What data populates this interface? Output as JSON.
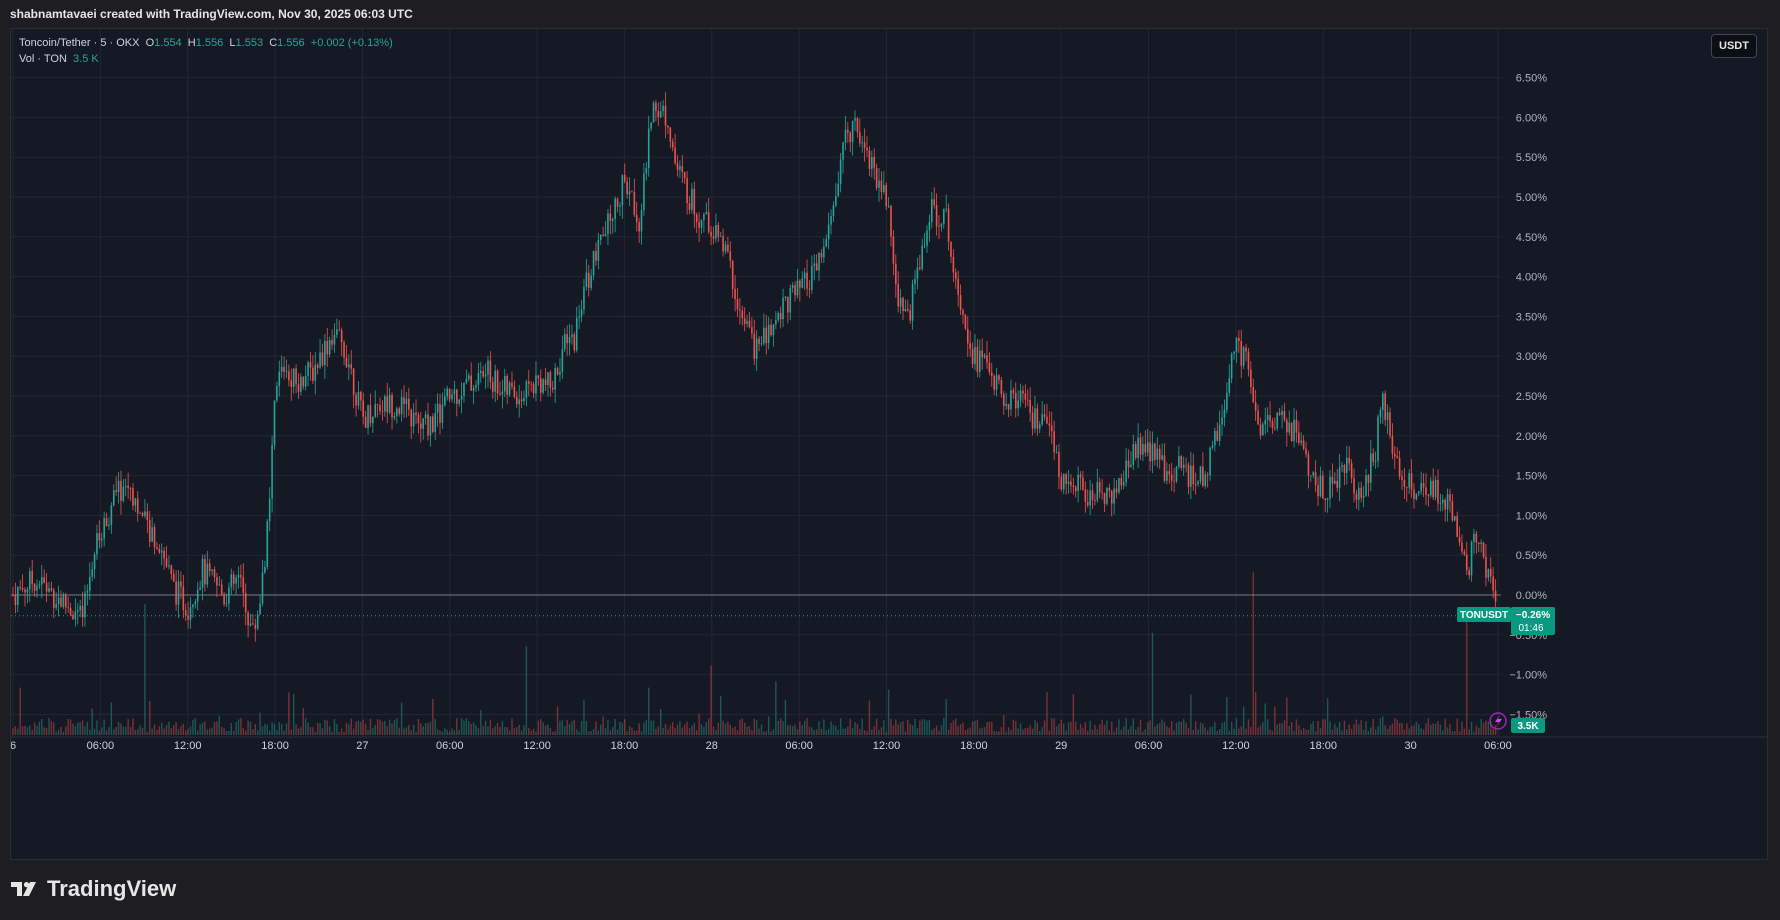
{
  "header": {
    "title": "shabnamtavaei created with TradingView.com, Nov 30, 2025 06:03 UTC"
  },
  "legend": {
    "symbol": "Toncoin/Tether · 5 · OKX",
    "open_label": "O",
    "open": "1.554",
    "high_label": "H",
    "high": "1.556",
    "low_label": "L",
    "low": "1.553",
    "close_label": "C",
    "close": "1.556",
    "change": "+0.002 (+0.13%)",
    "vol_label": "Vol · TON",
    "vol_value": "3.5 K"
  },
  "toolbar": {
    "currency_label": "USDT"
  },
  "badges": {
    "symbol_tag": "TONUSDT",
    "price_change": "−0.26%",
    "countdown": "01:46",
    "volume": "3.5K"
  },
  "footer": {
    "brand": "TradingView"
  },
  "colors": {
    "up": "#26a69a",
    "down": "#ef5350",
    "background": "#151924",
    "grid": "#232733",
    "text": "#b2b5be"
  },
  "chart_data": {
    "type": "candlestick",
    "title": "Toncoin/Tether · 5 · OKX",
    "xlabel": "",
    "ylabel": "",
    "y_unit": "%",
    "ylim": [
      -1.7,
      6.9
    ],
    "y_ticks": [
      "6.50%",
      "6.00%",
      "5.50%",
      "5.00%",
      "4.50%",
      "4.00%",
      "3.50%",
      "3.00%",
      "2.50%",
      "2.00%",
      "1.50%",
      "1.00%",
      "0.50%",
      "0.00%",
      "−0.50%",
      "−1.00%",
      "−1.50%"
    ],
    "x_ticks": [
      "6",
      "06:00",
      "12:00",
      "18:00",
      "27",
      "06:00",
      "12:00",
      "18:00",
      "28",
      "06:00",
      "12:00",
      "18:00",
      "29",
      "06:00",
      "12:00",
      "18:00",
      "30",
      "06:00"
    ],
    "last_value": -0.26,
    "price_path": [
      [
        0,
        0.0
      ],
      [
        1.5,
        0.2
      ],
      [
        3.5,
        -0.1
      ],
      [
        4.8,
        -0.3
      ],
      [
        5.5,
        0.5
      ],
      [
        7,
        1.25
      ],
      [
        8,
        1.4
      ],
      [
        9,
        0.9
      ],
      [
        10,
        0.7
      ],
      [
        11,
        0.1
      ],
      [
        12,
        -0.15
      ],
      [
        13,
        0.3
      ],
      [
        14.5,
        0.0
      ],
      [
        15.5,
        0.2
      ],
      [
        16.5,
        -0.5
      ],
      [
        17,
        0.0
      ],
      [
        17.6,
        1.0
      ],
      [
        18,
        2.5
      ],
      [
        18.5,
        2.9
      ],
      [
        19.5,
        2.7
      ],
      [
        20.5,
        2.8
      ],
      [
        22,
        3.3
      ],
      [
        23,
        3.0
      ],
      [
        24,
        2.2
      ],
      [
        25,
        2.4
      ],
      [
        26.5,
        2.4
      ],
      [
        28,
        2.1
      ],
      [
        29,
        2.2
      ],
      [
        30,
        2.5
      ],
      [
        31,
        2.6
      ],
      [
        32.5,
        2.8
      ],
      [
        33.5,
        2.6
      ],
      [
        35,
        2.5
      ],
      [
        36,
        2.7
      ],
      [
        37,
        2.6
      ],
      [
        37.8,
        3.1
      ],
      [
        38.5,
        3.2
      ],
      [
        39.5,
        4.0
      ],
      [
        41,
        4.7
      ],
      [
        42,
        5.2
      ],
      [
        43,
        4.7
      ],
      [
        44,
        6.2
      ],
      [
        45,
        6.0
      ],
      [
        45.5,
        5.4
      ],
      [
        47,
        4.8
      ],
      [
        48,
        4.6
      ],
      [
        49,
        4.3
      ],
      [
        50,
        3.5
      ],
      [
        51,
        3.1
      ],
      [
        52,
        3.3
      ],
      [
        53,
        3.7
      ],
      [
        54,
        3.8
      ],
      [
        55,
        4.0
      ],
      [
        56,
        4.5
      ],
      [
        57,
        5.6
      ],
      [
        57.8,
        6.0
      ],
      [
        59,
        5.4
      ],
      [
        60,
        5.0
      ],
      [
        60.7,
        3.8
      ],
      [
        61.5,
        3.5
      ],
      [
        62.5,
        4.4
      ],
      [
        63,
        4.8
      ],
      [
        64,
        4.8
      ],
      [
        65,
        3.8
      ],
      [
        66,
        3.0
      ],
      [
        67,
        2.9
      ],
      [
        68,
        2.4
      ],
      [
        69,
        2.5
      ],
      [
        70,
        2.2
      ],
      [
        71,
        2.1
      ],
      [
        72,
        1.5
      ],
      [
        73,
        1.4
      ],
      [
        74,
        1.2
      ],
      [
        75,
        1.3
      ],
      [
        76,
        1.3
      ],
      [
        77,
        1.9
      ],
      [
        78,
        1.8
      ],
      [
        79,
        1.6
      ],
      [
        80,
        1.6
      ],
      [
        81,
        1.5
      ],
      [
        82,
        1.5
      ],
      [
        83,
        2.3
      ],
      [
        84,
        3.2
      ],
      [
        85,
        2.8
      ],
      [
        85.6,
        2.0
      ],
      [
        86.5,
        2.2
      ],
      [
        87.5,
        2.2
      ],
      [
        88.5,
        1.9
      ],
      [
        89.5,
        1.3
      ],
      [
        90.5,
        1.4
      ],
      [
        91.5,
        1.6
      ],
      [
        92.5,
        1.3
      ],
      [
        93.5,
        1.7
      ],
      [
        94,
        2.5
      ],
      [
        95,
        1.6
      ],
      [
        96,
        1.4
      ],
      [
        97,
        1.3
      ],
      [
        98,
        1.3
      ],
      [
        99,
        1.0
      ],
      [
        99.5,
        0.7
      ],
      [
        100,
        0.4
      ],
      [
        100.5,
        0.7
      ],
      [
        101.2,
        0.3
      ],
      [
        102,
        -0.26
      ]
    ]
  }
}
